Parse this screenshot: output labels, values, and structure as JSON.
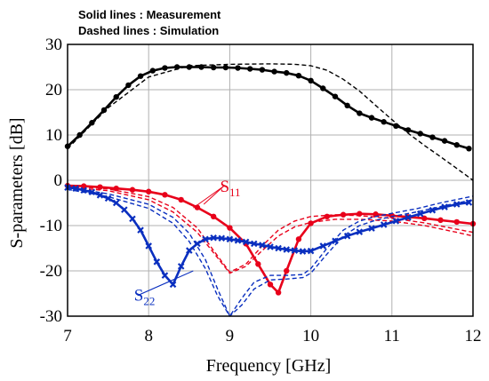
{
  "chart_data": {
    "type": "line",
    "notes": [
      "Solid lines : Measurement",
      "Dashed lines : Simulation"
    ],
    "xlabel": "Frequency [GHz]",
    "ylabel": "S-parameters [dB]",
    "xlim": [
      7,
      12
    ],
    "ylim": [
      -30,
      30
    ],
    "xticks": [
      7,
      8,
      9,
      10,
      11,
      12
    ],
    "yticks": [
      -30,
      -20,
      -10,
      0,
      10,
      20,
      30
    ],
    "grid": true,
    "annotations": [
      {
        "base": "S",
        "sub": "11",
        "color": "#e8001a",
        "x": 8.88,
        "y": -2.5,
        "targets": [
          {
            "x": 8.68,
            "y": -5.3
          },
          {
            "x": 8.55,
            "y": -6.1
          }
        ]
      },
      {
        "base": "S",
        "sub": "22",
        "color": "#0a2fbf",
        "x": 7.82,
        "y": -26.6,
        "targets": [
          {
            "x": 8.3,
            "y": -22.0
          },
          {
            "x": 8.55,
            "y": -20.0
          }
        ]
      }
    ],
    "series": [
      {
        "color": "#000000",
        "style": "solid",
        "marker": "circle",
        "x": [
          7.0,
          7.15,
          7.3,
          7.45,
          7.6,
          7.75,
          7.9,
          8.05,
          8.2,
          8.35,
          8.5,
          8.65,
          8.8,
          8.95,
          9.1,
          9.25,
          9.4,
          9.55,
          9.7,
          9.85,
          10.0,
          10.15,
          10.3,
          10.45,
          10.6,
          10.75,
          10.9,
          11.05,
          11.2,
          11.35,
          11.5,
          11.65,
          11.8,
          11.95
        ],
        "y": [
          7.5,
          10.0,
          12.7,
          15.5,
          18.4,
          21.0,
          23.0,
          24.2,
          24.8,
          25.0,
          25.0,
          25.0,
          24.9,
          24.9,
          24.8,
          24.6,
          24.4,
          24.0,
          23.7,
          23.1,
          22.0,
          20.3,
          18.5,
          16.5,
          14.8,
          13.8,
          12.9,
          12.0,
          11.1,
          10.3,
          9.5,
          8.7,
          7.8,
          7.0
        ]
      },
      {
        "color": "#000000",
        "style": "dashed",
        "marker": "none",
        "x": [
          7.0,
          7.5,
          8.0,
          8.5,
          9.0,
          9.5,
          9.8,
          10.0,
          10.2,
          10.4,
          10.6,
          10.8,
          11.0,
          11.2,
          11.4,
          11.6,
          11.8,
          12.0
        ],
        "y": [
          7.0,
          16.0,
          22.8,
          25.3,
          25.6,
          25.7,
          25.6,
          25.3,
          24.3,
          22.3,
          19.7,
          16.5,
          13.4,
          10.4,
          7.7,
          5.2,
          2.6,
          0.0
        ]
      },
      {
        "color": "#e8001a",
        "style": "solid",
        "marker": "circle",
        "x": [
          7.0,
          7.2,
          7.4,
          7.6,
          7.8,
          8.0,
          8.2,
          8.4,
          8.6,
          8.8,
          9.0,
          9.2,
          9.35,
          9.5,
          9.6,
          9.7,
          9.85,
          10.0,
          10.2,
          10.4,
          10.6,
          10.8,
          11.0,
          11.2,
          11.4,
          11.6,
          11.8,
          12.0
        ],
        "y": [
          -1.2,
          -1.3,
          -1.5,
          -1.8,
          -2.1,
          -2.5,
          -3.2,
          -4.3,
          -6.0,
          -8.0,
          -10.5,
          -14.0,
          -18.5,
          -23.0,
          -24.8,
          -20.0,
          -13.0,
          -9.5,
          -8.0,
          -7.6,
          -7.4,
          -7.5,
          -7.8,
          -8.1,
          -8.4,
          -8.8,
          -9.2,
          -9.6
        ]
      },
      {
        "color": "#e8001a",
        "style": "dashed",
        "marker": "none",
        "x": [
          7.0,
          7.5,
          8.0,
          8.3,
          8.6,
          8.8,
          9.0,
          9.2,
          9.4,
          9.6,
          9.8,
          10.0,
          10.3,
          10.6,
          11.0,
          11.4,
          11.8,
          12.0
        ],
        "y": [
          -1.3,
          -1.9,
          -3.6,
          -6.0,
          -10.5,
          -15.5,
          -20.3,
          -18.5,
          -14.5,
          -11.0,
          -9.0,
          -8.0,
          -7.6,
          -7.8,
          -8.4,
          -9.4,
          -10.8,
          -11.5
        ]
      },
      {
        "color": "#e8001a",
        "style": "dashed",
        "marker": "none",
        "x": [
          7.0,
          7.5,
          8.0,
          8.3,
          8.6,
          8.8,
          9.0,
          9.2,
          9.4,
          9.6,
          9.8,
          10.0,
          10.3,
          10.6,
          11.0,
          11.4,
          11.8,
          12.0
        ],
        "y": [
          -1.5,
          -2.3,
          -4.3,
          -7.0,
          -11.5,
          -16.0,
          -20.5,
          -19.0,
          -15.5,
          -12.3,
          -10.3,
          -9.3,
          -8.6,
          -8.6,
          -9.0,
          -10.0,
          -11.5,
          -12.3
        ]
      },
      {
        "color": "#0a2fbf",
        "style": "solid",
        "marker": "cross",
        "x": [
          7.0,
          7.1,
          7.2,
          7.3,
          7.4,
          7.5,
          7.6,
          7.7,
          7.8,
          7.9,
          8.0,
          8.1,
          8.2,
          8.3,
          8.4,
          8.5,
          8.6,
          8.7,
          8.8,
          8.9,
          9.0,
          9.1,
          9.2,
          9.3,
          9.4,
          9.5,
          9.6,
          9.7,
          9.8,
          9.9,
          10.0,
          10.15,
          10.3,
          10.45,
          10.6,
          10.75,
          10.9,
          11.05,
          11.2,
          11.35,
          11.5,
          11.65,
          11.8,
          11.95
        ],
        "y": [
          -1.6,
          -1.8,
          -2.2,
          -2.6,
          -3.3,
          -4.0,
          -5.0,
          -6.5,
          -8.5,
          -11.0,
          -14.5,
          -18.0,
          -21.0,
          -23.0,
          -19.0,
          -15.5,
          -14.0,
          -13.0,
          -12.7,
          -12.8,
          -13.0,
          -13.3,
          -13.6,
          -14.0,
          -14.3,
          -14.7,
          -15.0,
          -15.3,
          -15.5,
          -15.7,
          -15.6,
          -14.5,
          -13.4,
          -12.3,
          -11.4,
          -10.6,
          -9.8,
          -9.0,
          -8.2,
          -7.4,
          -6.6,
          -5.9,
          -5.3,
          -4.9
        ]
      },
      {
        "color": "#0a2fbf",
        "style": "dashed",
        "marker": "none",
        "x": [
          7.0,
          7.5,
          8.0,
          8.3,
          8.5,
          8.7,
          8.85,
          9.0,
          9.15,
          9.3,
          9.5,
          9.7,
          9.9,
          10.0,
          10.2,
          10.4,
          10.6,
          10.8,
          11.0,
          11.3,
          11.6,
          12.0
        ],
        "y": [
          -1.5,
          -3.0,
          -5.3,
          -8.2,
          -11.7,
          -17.5,
          -24.0,
          -30.0,
          -26.0,
          -22.5,
          -21.0,
          -21.0,
          -20.8,
          -19.5,
          -15.0,
          -11.0,
          -9.0,
          -8.0,
          -7.3,
          -6.3,
          -5.0,
          -3.5
        ]
      },
      {
        "color": "#0a2fbf",
        "style": "dashed",
        "marker": "none",
        "x": [
          7.0,
          7.5,
          8.0,
          8.3,
          8.5,
          8.7,
          8.85,
          9.0,
          9.15,
          9.3,
          9.5,
          9.7,
          9.9,
          10.0,
          10.2,
          10.4,
          10.6,
          10.8,
          11.0,
          11.3,
          11.6,
          12.0
        ],
        "y": [
          -2.0,
          -3.6,
          -6.2,
          -9.5,
          -13.5,
          -19.5,
          -25.5,
          -30.0,
          -27.5,
          -24.0,
          -22.0,
          -21.8,
          -21.5,
          -20.5,
          -16.3,
          -12.3,
          -10.0,
          -8.8,
          -8.0,
          -7.0,
          -5.8,
          -4.3
        ]
      }
    ]
  }
}
